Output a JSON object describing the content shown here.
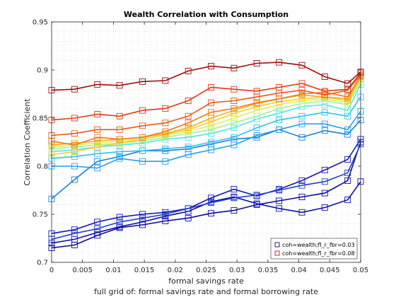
{
  "chart_data": {
    "type": "line",
    "title": "Wealth Correlation with Consumption",
    "xlabel": "formal savings rate",
    "ylabel": "Correlation Coefficient",
    "caption": "full grid of: formal savings rate and formal borrowing rate",
    "xlim": [
      0,
      0.05
    ],
    "ylim": [
      0.7,
      0.95
    ],
    "xticks": [
      0,
      0.005,
      0.01,
      0.015,
      0.02,
      0.025,
      0.03,
      0.035,
      0.04,
      0.045,
      0.05
    ],
    "xtick_labels": [
      "0",
      "0.005",
      "0.01",
      "0.015",
      "0.02",
      "0.025",
      "0.03",
      "0.035",
      "0.04",
      "0.045",
      "0.05"
    ],
    "yticks": [
      0.7,
      0.75,
      0.8,
      0.85,
      0.9,
      0.95
    ],
    "ytick_labels": [
      "0.7",
      "0.75",
      "0.8",
      "0.85",
      "0.9",
      "0.95"
    ],
    "grid": "minor dotted",
    "legend_position": "bottom-right",
    "legend": [
      {
        "label": "coh=wealth;fl_r_fbr=0.03",
        "color": "#1a1ab3"
      },
      {
        "label": "coh=wealth;fl_r_fbr=0.08",
        "color": "#cc2a1a"
      }
    ],
    "x": [
      0,
      0.0037,
      0.0074,
      0.011,
      0.0147,
      0.0184,
      0.0221,
      0.0258,
      0.0295,
      0.0332,
      0.0368,
      0.0405,
      0.0442,
      0.0479,
      0.05
    ],
    "series": [
      {
        "color": "#0a0a9e",
        "values": [
          0.715,
          0.718,
          0.728,
          0.736,
          0.739,
          0.743,
          0.746,
          0.751,
          0.754,
          0.76,
          0.764,
          0.768,
          0.772,
          0.785,
          0.825
        ]
      },
      {
        "color": "#0d0daa",
        "values": [
          0.72,
          0.724,
          0.731,
          0.737,
          0.742,
          0.748,
          0.753,
          0.763,
          0.768,
          0.761,
          0.756,
          0.752,
          0.757,
          0.765,
          0.784
        ]
      },
      {
        "color": "#1515b8",
        "values": [
          0.73,
          0.734,
          0.742,
          0.747,
          0.75,
          0.752,
          0.756,
          0.767,
          0.776,
          0.769,
          0.776,
          0.785,
          0.796,
          0.807,
          0.828
        ]
      },
      {
        "color": "#2040c8",
        "values": [
          0.724,
          0.73,
          0.735,
          0.742,
          0.746,
          0.75,
          0.756,
          0.762,
          0.767,
          0.77,
          0.775,
          0.78,
          0.784,
          0.793,
          0.823
        ]
      },
      {
        "color": "#1a80d8",
        "values": [
          0.766,
          0.786,
          0.805,
          0.81,
          0.816,
          0.816,
          0.818,
          0.823,
          0.828,
          0.83,
          0.838,
          0.83,
          0.837,
          0.833,
          0.848
        ]
      },
      {
        "color": "#2a9ee6",
        "values": [
          0.8,
          0.8,
          0.798,
          0.808,
          0.805,
          0.805,
          0.812,
          0.817,
          0.822,
          0.832,
          0.838,
          0.844,
          0.844,
          0.838,
          0.857
        ]
      },
      {
        "color": "#30c0f0",
        "values": [
          0.808,
          0.81,
          0.813,
          0.815,
          0.816,
          0.818,
          0.82,
          0.825,
          0.83,
          0.84,
          0.848,
          0.852,
          0.856,
          0.852,
          0.872
        ]
      },
      {
        "color": "#50e6e6",
        "values": [
          0.815,
          0.817,
          0.82,
          0.822,
          0.824,
          0.828,
          0.83,
          0.834,
          0.84,
          0.849,
          0.855,
          0.862,
          0.864,
          0.858,
          0.885
        ]
      },
      {
        "color": "#a0f0a0",
        "values": [
          0.818,
          0.82,
          0.822,
          0.824,
          0.826,
          0.83,
          0.834,
          0.838,
          0.845,
          0.852,
          0.86,
          0.865,
          0.868,
          0.864,
          0.888
        ]
      },
      {
        "color": "#e0f05a",
        "values": [
          0.82,
          0.822,
          0.824,
          0.826,
          0.828,
          0.832,
          0.836,
          0.842,
          0.85,
          0.858,
          0.864,
          0.868,
          0.87,
          0.866,
          0.89
        ]
      },
      {
        "color": "#f0d030",
        "values": [
          0.812,
          0.815,
          0.82,
          0.824,
          0.828,
          0.833,
          0.838,
          0.846,
          0.855,
          0.862,
          0.867,
          0.87,
          0.872,
          0.868,
          0.892
        ]
      },
      {
        "color": "#f0b020",
        "values": [
          0.822,
          0.824,
          0.826,
          0.828,
          0.83,
          0.834,
          0.84,
          0.85,
          0.858,
          0.865,
          0.87,
          0.874,
          0.872,
          0.87,
          0.893
        ]
      },
      {
        "color": "#ee7818",
        "values": [
          0.826,
          0.822,
          0.83,
          0.828,
          0.83,
          0.836,
          0.845,
          0.856,
          0.86,
          0.866,
          0.87,
          0.875,
          0.877,
          0.872,
          0.894
        ]
      },
      {
        "color": "#e85818",
        "values": [
          0.832,
          0.834,
          0.838,
          0.838,
          0.842,
          0.845,
          0.852,
          0.866,
          0.868,
          0.872,
          0.876,
          0.879,
          0.874,
          0.879,
          0.895
        ]
      },
      {
        "color": "#de3c16",
        "values": [
          0.848,
          0.85,
          0.854,
          0.852,
          0.858,
          0.86,
          0.868,
          0.882,
          0.88,
          0.878,
          0.882,
          0.886,
          0.878,
          0.88,
          0.897
        ]
      },
      {
        "color": "#a00c0c",
        "values": [
          0.879,
          0.88,
          0.885,
          0.884,
          0.888,
          0.889,
          0.899,
          0.904,
          0.902,
          0.907,
          0.908,
          0.905,
          0.893,
          0.886,
          0.898
        ]
      }
    ]
  }
}
